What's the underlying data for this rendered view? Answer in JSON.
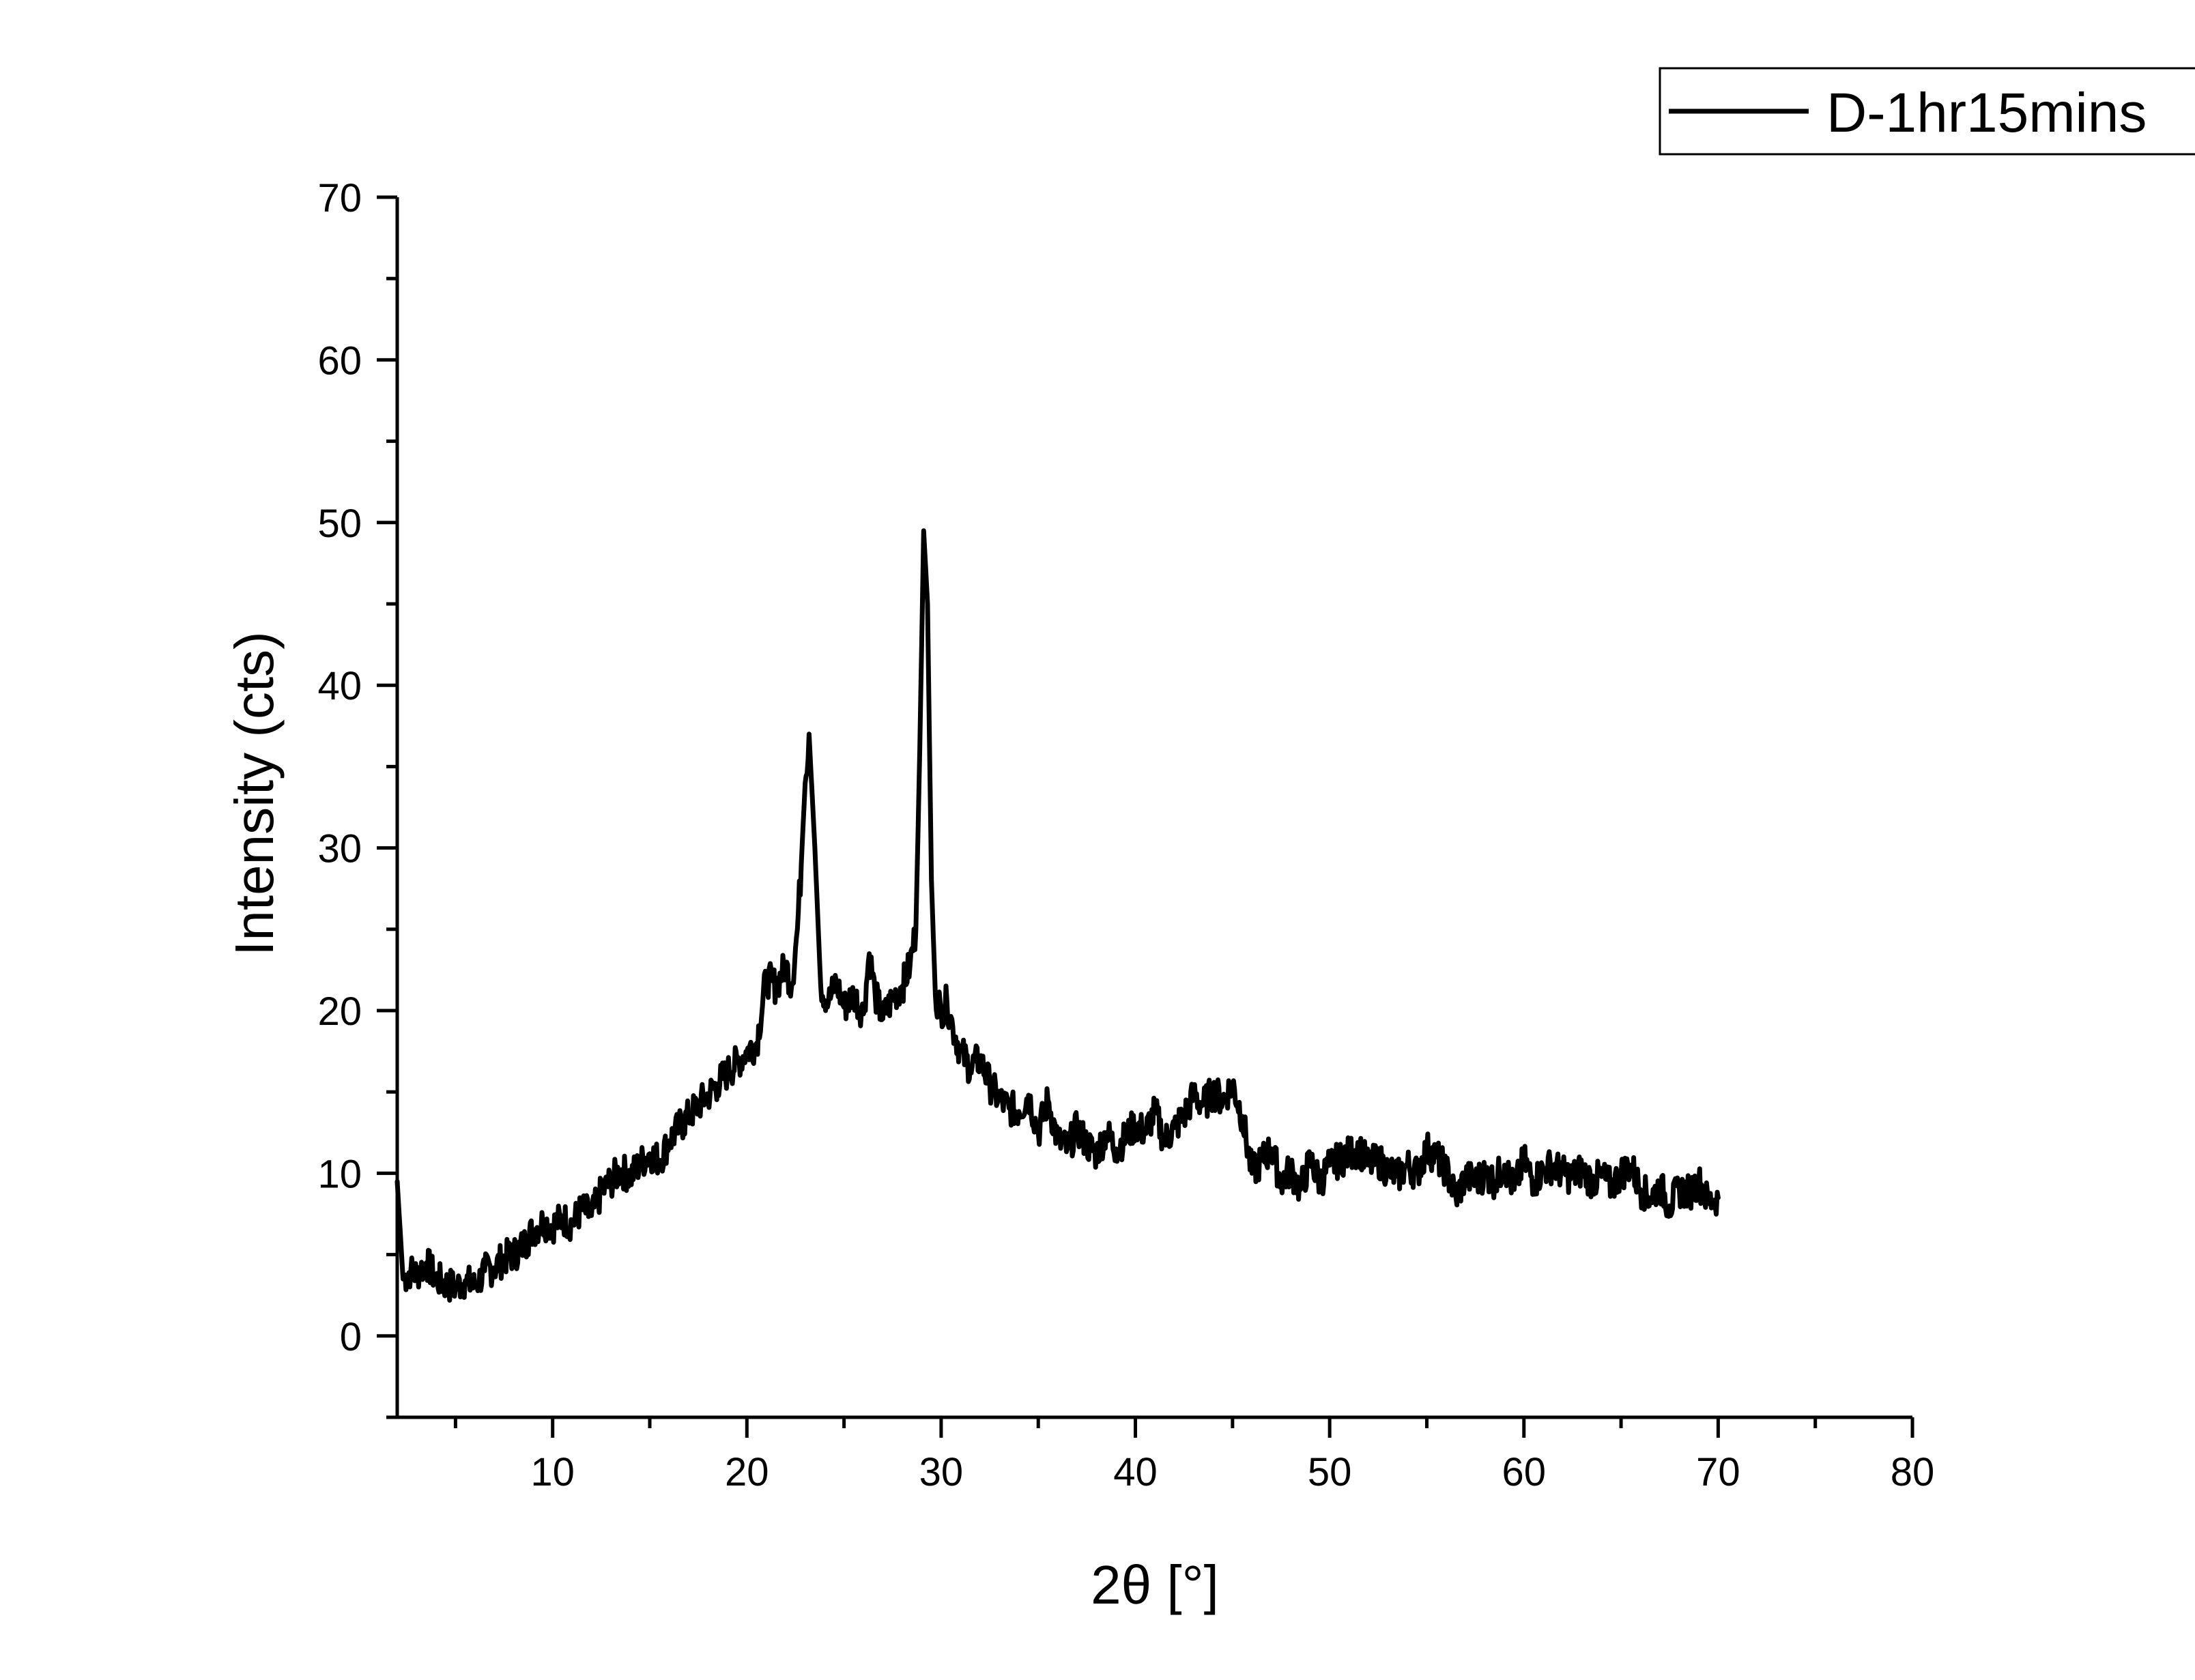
{
  "chart_data": {
    "type": "line",
    "xlabel": "2θ [°]",
    "ylabel": "Intensity (cts)",
    "xlim": [
      2,
      80
    ],
    "ylim": [
      -5,
      70
    ],
    "xticks": [
      10,
      20,
      30,
      40,
      50,
      60,
      70,
      80
    ],
    "yticks": [
      0,
      10,
      20,
      30,
      40,
      50,
      60,
      70
    ],
    "grid": false,
    "legend_position": "top-right",
    "line_color": "#000000",
    "series": [
      {
        "name": "D-1hr15mins",
        "x": [
          2.0,
          2.3,
          2.7,
          3.0,
          3.5,
          4.0,
          4.5,
          5.0,
          5.5,
          6.0,
          6.5,
          7.0,
          7.5,
          8.0,
          8.5,
          9.0,
          9.5,
          10.0,
          10.5,
          11.0,
          11.5,
          12.0,
          12.5,
          13.0,
          13.5,
          14.0,
          14.5,
          15.0,
          15.5,
          16.0,
          16.5,
          17.0,
          17.5,
          18.0,
          18.5,
          19.0,
          19.5,
          20.0,
          20.5,
          21.0,
          21.5,
          22.0,
          22.3,
          22.6,
          22.8,
          23.0,
          23.2,
          23.5,
          23.8,
          24.2,
          24.6,
          25.0,
          25.5,
          26.0,
          26.3,
          26.6,
          27.0,
          27.5,
          28.0,
          28.4,
          28.7,
          28.9,
          29.1,
          29.3,
          29.5,
          29.7,
          30.0,
          30.3,
          30.6,
          31.0,
          31.5,
          32.0,
          32.5,
          33.0,
          33.5,
          34.0,
          34.5,
          35.0,
          35.5,
          36.0,
          36.5,
          37.0,
          37.5,
          38.0,
          38.5,
          39.0,
          39.5,
          40.0,
          40.5,
          41.0,
          41.5,
          42.0,
          42.5,
          43.0,
          43.5,
          44.0,
          44.5,
          45.0,
          45.5,
          46.0,
          46.5,
          47.0,
          47.5,
          48.0,
          48.5,
          49.0,
          49.5,
          50.0,
          50.5,
          51.0,
          51.5,
          52.0,
          52.5,
          53.0,
          53.5,
          54.0,
          54.5,
          55.0,
          55.5,
          56.0,
          56.5,
          57.0,
          57.5,
          58.0,
          58.5,
          59.0,
          59.5,
          60.0,
          60.5,
          61.0,
          61.5,
          62.0,
          62.5,
          63.0,
          63.5,
          64.0,
          64.5,
          65.0,
          65.5,
          66.0,
          66.5,
          67.0,
          67.5,
          68.0,
          68.5,
          69.0,
          69.5,
          70.0
        ],
        "y": [
          9.5,
          3.5,
          4.0,
          3.8,
          4.5,
          3.5,
          3.2,
          3.0,
          3.4,
          3.0,
          4.0,
          4.2,
          4.8,
          5.0,
          5.6,
          6.5,
          7.0,
          6.8,
          7.2,
          6.9,
          7.8,
          7.4,
          8.8,
          9.5,
          10.2,
          9.8,
          10.6,
          11.2,
          10.8,
          12.0,
          12.8,
          13.5,
          14.2,
          14.8,
          15.5,
          16.2,
          16.8,
          17.5,
          18.0,
          22.0,
          21.5,
          22.8,
          21.5,
          25.0,
          29.0,
          34.0,
          37.0,
          30.0,
          21.5,
          20.5,
          21.8,
          20.2,
          21.0,
          19.8,
          23.5,
          21.0,
          19.5,
          20.8,
          21.5,
          22.8,
          25.0,
          36.0,
          49.5,
          45.0,
          28.0,
          21.0,
          20.0,
          20.5,
          19.0,
          17.5,
          16.5,
          17.0,
          15.5,
          14.5,
          14.0,
          13.8,
          14.8,
          12.5,
          14.5,
          12.0,
          11.5,
          12.8,
          11.8,
          11.2,
          12.5,
          11.5,
          12.2,
          13.0,
          12.5,
          13.8,
          12.0,
          12.8,
          13.5,
          14.8,
          14.2,
          15.0,
          14.5,
          15.5,
          13.5,
          10.0,
          10.8,
          11.5,
          9.5,
          10.2,
          9.0,
          10.8,
          9.5,
          10.5,
          10.8,
          11.2,
          11.5,
          10.5,
          10.8,
          10.2,
          9.8,
          10.5,
          10.0,
          11.5,
          11.0,
          10.2,
          8.5,
          9.8,
          9.5,
          10.0,
          9.5,
          10.5,
          9.0,
          10.8,
          9.5,
          10.2,
          10.5,
          10.0,
          9.8,
          10.2,
          9.5,
          9.8,
          9.2,
          10.0,
          10.5,
          9.0,
          8.5,
          9.2,
          8.0,
          9.0,
          8.8,
          9.5,
          8.2,
          8.5
        ]
      }
    ]
  }
}
